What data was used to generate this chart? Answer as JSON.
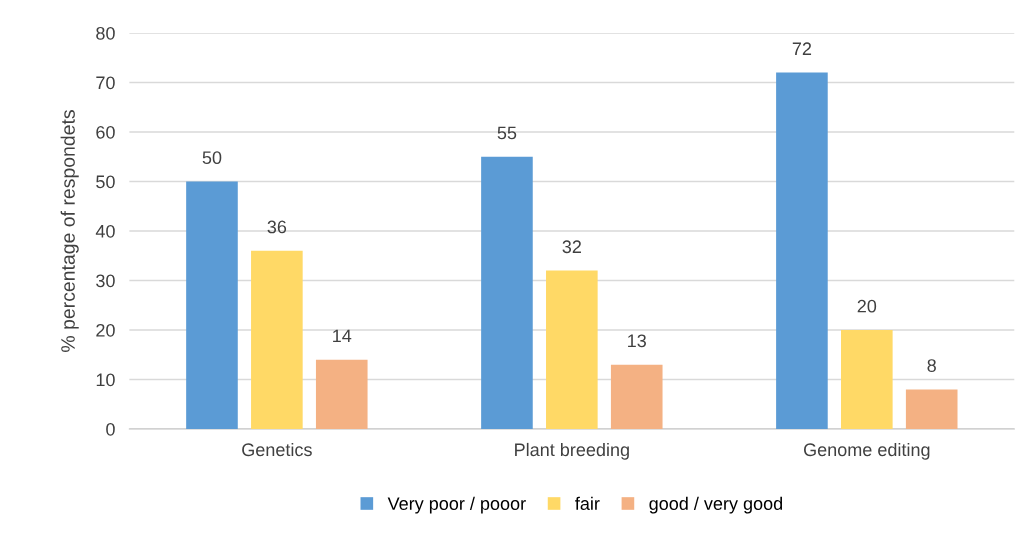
{
  "chart_data": {
    "type": "bar",
    "ylabel": "% percentage of respondets",
    "categories": [
      "Genetics",
      "Plant breeding",
      "Genome editing"
    ],
    "series": [
      {
        "name": "Very poor / pooor",
        "color": "#5b9bd5",
        "values": [
          50,
          55,
          72
        ]
      },
      {
        "name": "fair",
        "color": "#ffd966",
        "values": [
          36,
          32,
          20
        ]
      },
      {
        "name": "good / very good",
        "color": "#f4b183",
        "values": [
          14,
          13,
          8
        ]
      }
    ],
    "ylim": [
      0,
      80
    ],
    "yticks": [
      0,
      10,
      20,
      30,
      40,
      50,
      60,
      70,
      80
    ],
    "grid": "y",
    "legend": "bottom",
    "data_labels": true
  }
}
